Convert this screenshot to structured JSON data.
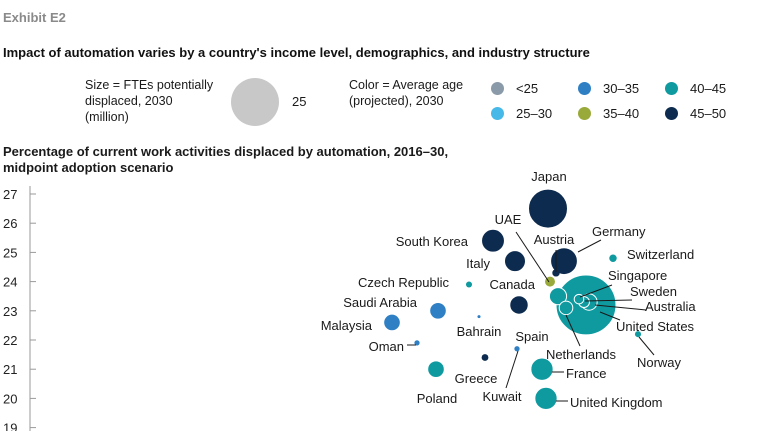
{
  "exhibit": "Exhibit E2",
  "title": "Impact of automation varies by a country's income level, demographics, and industry structure",
  "legend": {
    "size_text": "Size = FTEs potentially\ndisplaced, 2030\n(million)",
    "size_value": "25",
    "color_text": "Color = Average age\n(projected), 2030",
    "color_items": [
      {
        "label": "<25",
        "color": "#8a9aa8"
      },
      {
        "label": "30–35",
        "color": "#2e7fc4"
      },
      {
        "label": "40–45",
        "color": "#0f9aa0"
      },
      {
        "label": "25–30",
        "color": "#47b9e8"
      },
      {
        "label": "35–40",
        "color": "#9aaa3a"
      },
      {
        "label": "45–50",
        "color": "#0d2b4e"
      }
    ]
  },
  "subtitle": "Percentage of current work activities displaced by automation, 2016–30,\nmidpoint adoption scenario",
  "chart_data": {
    "type": "scatter",
    "title": "Impact of automation varies by a country's income level, demographics, and industry structure",
    "ylabel": "Percentage of current work activities displaced by automation, 2016–30, midpoint adoption scenario",
    "y_ticks": [
      "27",
      "26",
      "25",
      "24",
      "23",
      "22",
      "21",
      "20",
      "19"
    ],
    "ylim": [
      19,
      27
    ],
    "size_metric": "FTEs potentially displaced, 2030 (million)",
    "color_metric": "Average age (projected), 2030",
    "points": [
      {
        "label": "Japan",
        "y": 26.5,
        "size": 16.5,
        "age_group": "45–50"
      },
      {
        "label": "Germany",
        "y": 24.7,
        "size": 7.8,
        "age_group": "45–50"
      },
      {
        "label": "South Korea",
        "y": 25.4,
        "size": 5.7,
        "age_group": "45–50"
      },
      {
        "label": "Italy",
        "y": 24.7,
        "size": 4.8,
        "age_group": "45–50"
      },
      {
        "label": "Austria",
        "y": 24.3,
        "size": 0.6,
        "age_group": "45–50"
      },
      {
        "label": "UAE",
        "y": 24.0,
        "size": 1.3,
        "age_group": "35–40"
      },
      {
        "label": "Switzerland",
        "y": 24.8,
        "size": 0.6,
        "age_group": "40–45"
      },
      {
        "label": "United States",
        "y": 23.2,
        "size": 39,
        "age_group": "40–45"
      },
      {
        "label": "Canada",
        "y": 23.5,
        "size": 3.2,
        "age_group": "40–45"
      },
      {
        "label": "Singapore",
        "y": 23.4,
        "size": 1.0,
        "age_group": "40–45"
      },
      {
        "label": "Sweden",
        "y": 23.3,
        "size": 1.3,
        "age_group": "40–45"
      },
      {
        "label": "Australia",
        "y": 23.3,
        "size": 2.9,
        "age_group": "40–45"
      },
      {
        "label": "Netherlands",
        "y": 23.1,
        "size": 2.0,
        "age_group": "40–45"
      },
      {
        "label": "Czech Republic",
        "y": 23.9,
        "size": 0.4,
        "age_group": "40–45"
      },
      {
        "label": "Saudi Arabia",
        "y": 23.0,
        "size": 3.0,
        "age_group": "30–35"
      },
      {
        "label": "Spain",
        "y": 23.2,
        "size": 3.7,
        "age_group": "45–50"
      },
      {
        "label": "Malaysia",
        "y": 22.6,
        "size": 3.0,
        "age_group": "30–35"
      },
      {
        "label": "Bahrain",
        "y": 22.8,
        "size": 0.1,
        "age_group": "30–35"
      },
      {
        "label": "Oman",
        "y": 21.9,
        "size": 0.3,
        "age_group": "30–35"
      },
      {
        "label": "Norway",
        "y": 22.2,
        "size": 0.4,
        "age_group": "40–45"
      },
      {
        "label": "Greece",
        "y": 21.4,
        "size": 0.5,
        "age_group": "45–50"
      },
      {
        "label": "Kuwait",
        "y": 21.7,
        "size": 0.3,
        "age_group": "30–35"
      },
      {
        "label": "Poland",
        "y": 21.0,
        "size": 3.0,
        "age_group": "40–45"
      },
      {
        "label": "France",
        "y": 21.0,
        "size": 5.4,
        "age_group": "40–45"
      },
      {
        "label": "United Kingdom",
        "y": 20.0,
        "size": 5.4,
        "age_group": "40–45"
      }
    ]
  }
}
